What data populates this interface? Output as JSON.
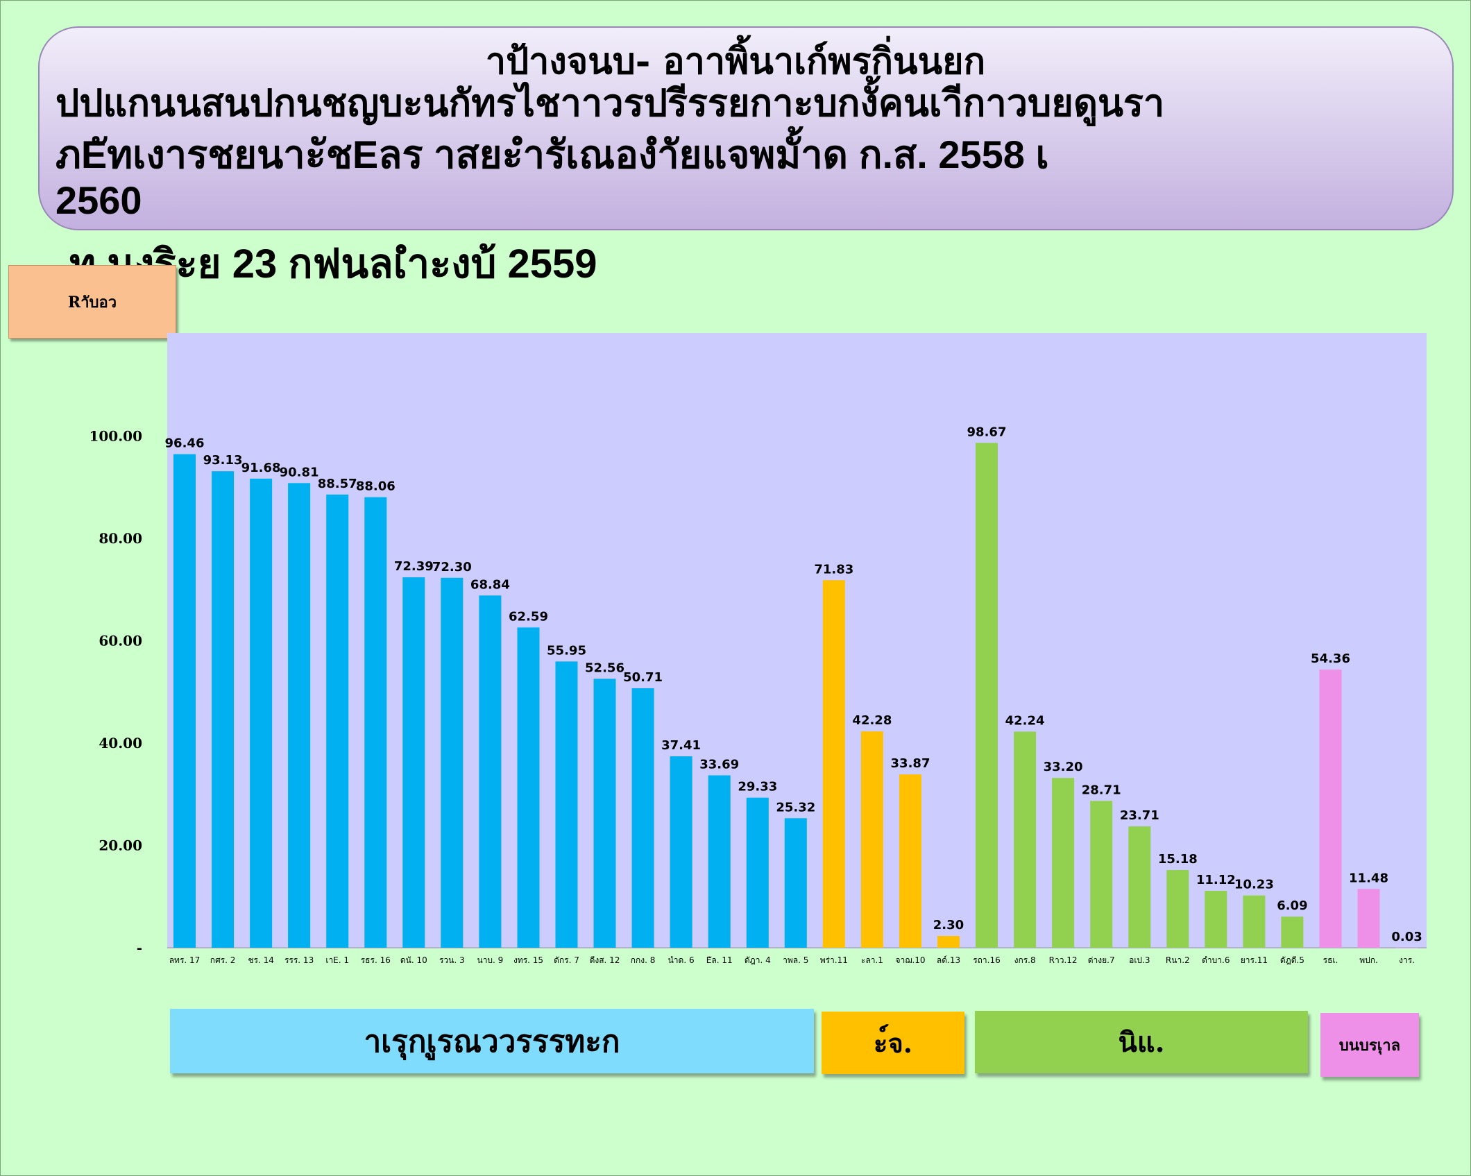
{
  "title": {
    "line1": "าป้างจนบ- อาาพิ้นาเก์พรกิ่นนยก",
    "line2": "ปปแกนนสนปกนชญบะนกัทรไชาาวรปรีรรยกาะบกงั้คนเาีกาวบยดูนรา",
    "line3": "ภEัทเงารชยนาะัชEลร   าสยะำรัเณองำัยแจพมั้าด     ก.ส.   2558 เ",
    "line4": "2560"
  },
  "subtitle": "ท  นงริะย  23 กฟนลเำะงบ้   2559",
  "unit_label": "Rาับอว",
  "colors": {
    "background": "#ccffcc",
    "plot_area": "#ccccff",
    "group_1": "#00b0f0",
    "group_2": "#ffc000",
    "group_3": "#92d050",
    "group_4": "#ee90e8"
  },
  "groups": [
    {
      "label": "าเรุกเูรณววรรรทะก",
      "color": "#00b0f0",
      "box_color": "#7fdcfc"
    },
    {
      "label": "ะ์จ.",
      "color": "#ffc000",
      "box_color": "#ffc000"
    },
    {
      "label": "นิแ.",
      "color": "#92d050",
      "box_color": "#92d050"
    },
    {
      "label": "บนบรเุาล",
      "color": "#ee90e8",
      "box_color": "#ee90e8"
    }
  ],
  "chart_data": {
    "type": "bar",
    "categories": [
      "ลทร. 17",
      "กศร. 2",
      "ชร. 14",
      "รรร. 13",
      "เาE. 1",
      "รธร. 16",
      "ดนั. 10",
      "รวน. 3",
      "นาบ. 9",
      "งทร. 15",
      "ดักร. 7",
      "ดีงส. 12",
      "กกง. 8",
      "นำด. 6",
      "Eัล. 11",
      "ดัฎา. 4",
      "าพล. 5",
      "พร่า.11",
      "ะลา.1",
      "จาฌ.10",
      "ลด์.13",
      "รถา.16",
      "งกร.8",
      "Rาว.12",
      "ด่างย.7",
      "อเป.3",
      "Rนา.2",
      "ดำบา.6",
      "ยาร.11",
      "ดัฎดี.5",
      "รธเ.",
      "พปก.",
      "งาร."
    ],
    "values": [
      96.46,
      93.13,
      91.68,
      90.81,
      88.57,
      88.06,
      72.39,
      72.3,
      68.84,
      62.59,
      55.95,
      52.56,
      50.71,
      37.41,
      33.69,
      29.33,
      25.32,
      71.83,
      42.28,
      33.87,
      2.3,
      98.67,
      42.24,
      33.2,
      28.71,
      23.71,
      15.18,
      11.12,
      10.23,
      6.09,
      54.36,
      11.48,
      0.03
    ],
    "value_labels": [
      "96.46",
      "93.13",
      "91.68",
      "90.81",
      "88.57",
      "88.06",
      "72.39",
      "72.30",
      "68.84",
      "62.59",
      "55.95",
      "52.56",
      "50.71",
      "37.41",
      "33.69",
      "29.33",
      "25.32",
      "71.83",
      "42.28",
      "33.87",
      "2.30",
      "98.67",
      "42.24",
      "33.20",
      "28.71",
      "23.71",
      "15.18",
      "11.12",
      "10.23",
      "6.09",
      "54.36",
      "11.48",
      "0.03"
    ],
    "group_index": [
      0,
      0,
      0,
      0,
      0,
      0,
      0,
      0,
      0,
      0,
      0,
      0,
      0,
      0,
      0,
      0,
      0,
      1,
      1,
      1,
      1,
      2,
      2,
      2,
      2,
      2,
      2,
      2,
      2,
      2,
      3,
      3,
      3
    ],
    "yticks": [
      0,
      20,
      40,
      60,
      80,
      100
    ],
    "ytick_labels": [
      "-",
      "20.00",
      "40.00",
      "60.00",
      "80.00",
      "100.00"
    ],
    "ylim": [
      0,
      120
    ],
    "grid": false,
    "legend": "none"
  }
}
